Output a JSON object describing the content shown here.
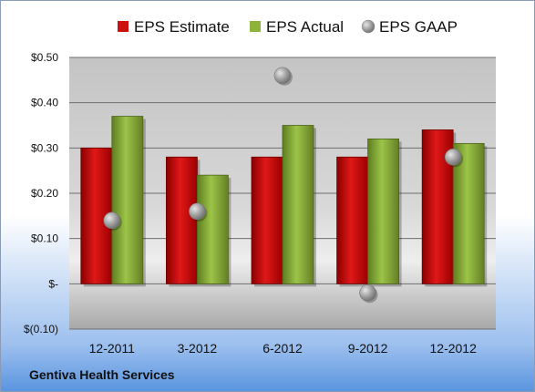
{
  "company": "Gentiva Health Services",
  "chart_data": {
    "type": "bar",
    "categories": [
      "12-2011",
      "3-2012",
      "6-2012",
      "9-2012",
      "12-2012"
    ],
    "series": [
      {
        "name": "EPS Estimate",
        "type": "bar",
        "color": "#cc1111",
        "values": [
          0.3,
          0.28,
          0.28,
          0.28,
          0.34
        ]
      },
      {
        "name": "EPS Actual",
        "type": "bar",
        "color": "#8db33a",
        "values": [
          0.37,
          0.24,
          0.35,
          0.32,
          0.31
        ]
      },
      {
        "name": "EPS GAAP",
        "type": "scatter",
        "color": "#9a9a9a",
        "values": [
          0.14,
          0.16,
          0.46,
          -0.02,
          0.28
        ]
      }
    ],
    "yticks": [
      0.5,
      0.4,
      0.3,
      0.2,
      0.1,
      0,
      -0.1
    ],
    "ytick_labels": [
      "$0.50",
      "$0.40",
      "$0.30",
      "$0.20",
      "$0.10",
      "$-",
      "$(0.10)"
    ],
    "ylim": [
      -0.1,
      0.5
    ],
    "grid": true,
    "legend_position": "top"
  }
}
